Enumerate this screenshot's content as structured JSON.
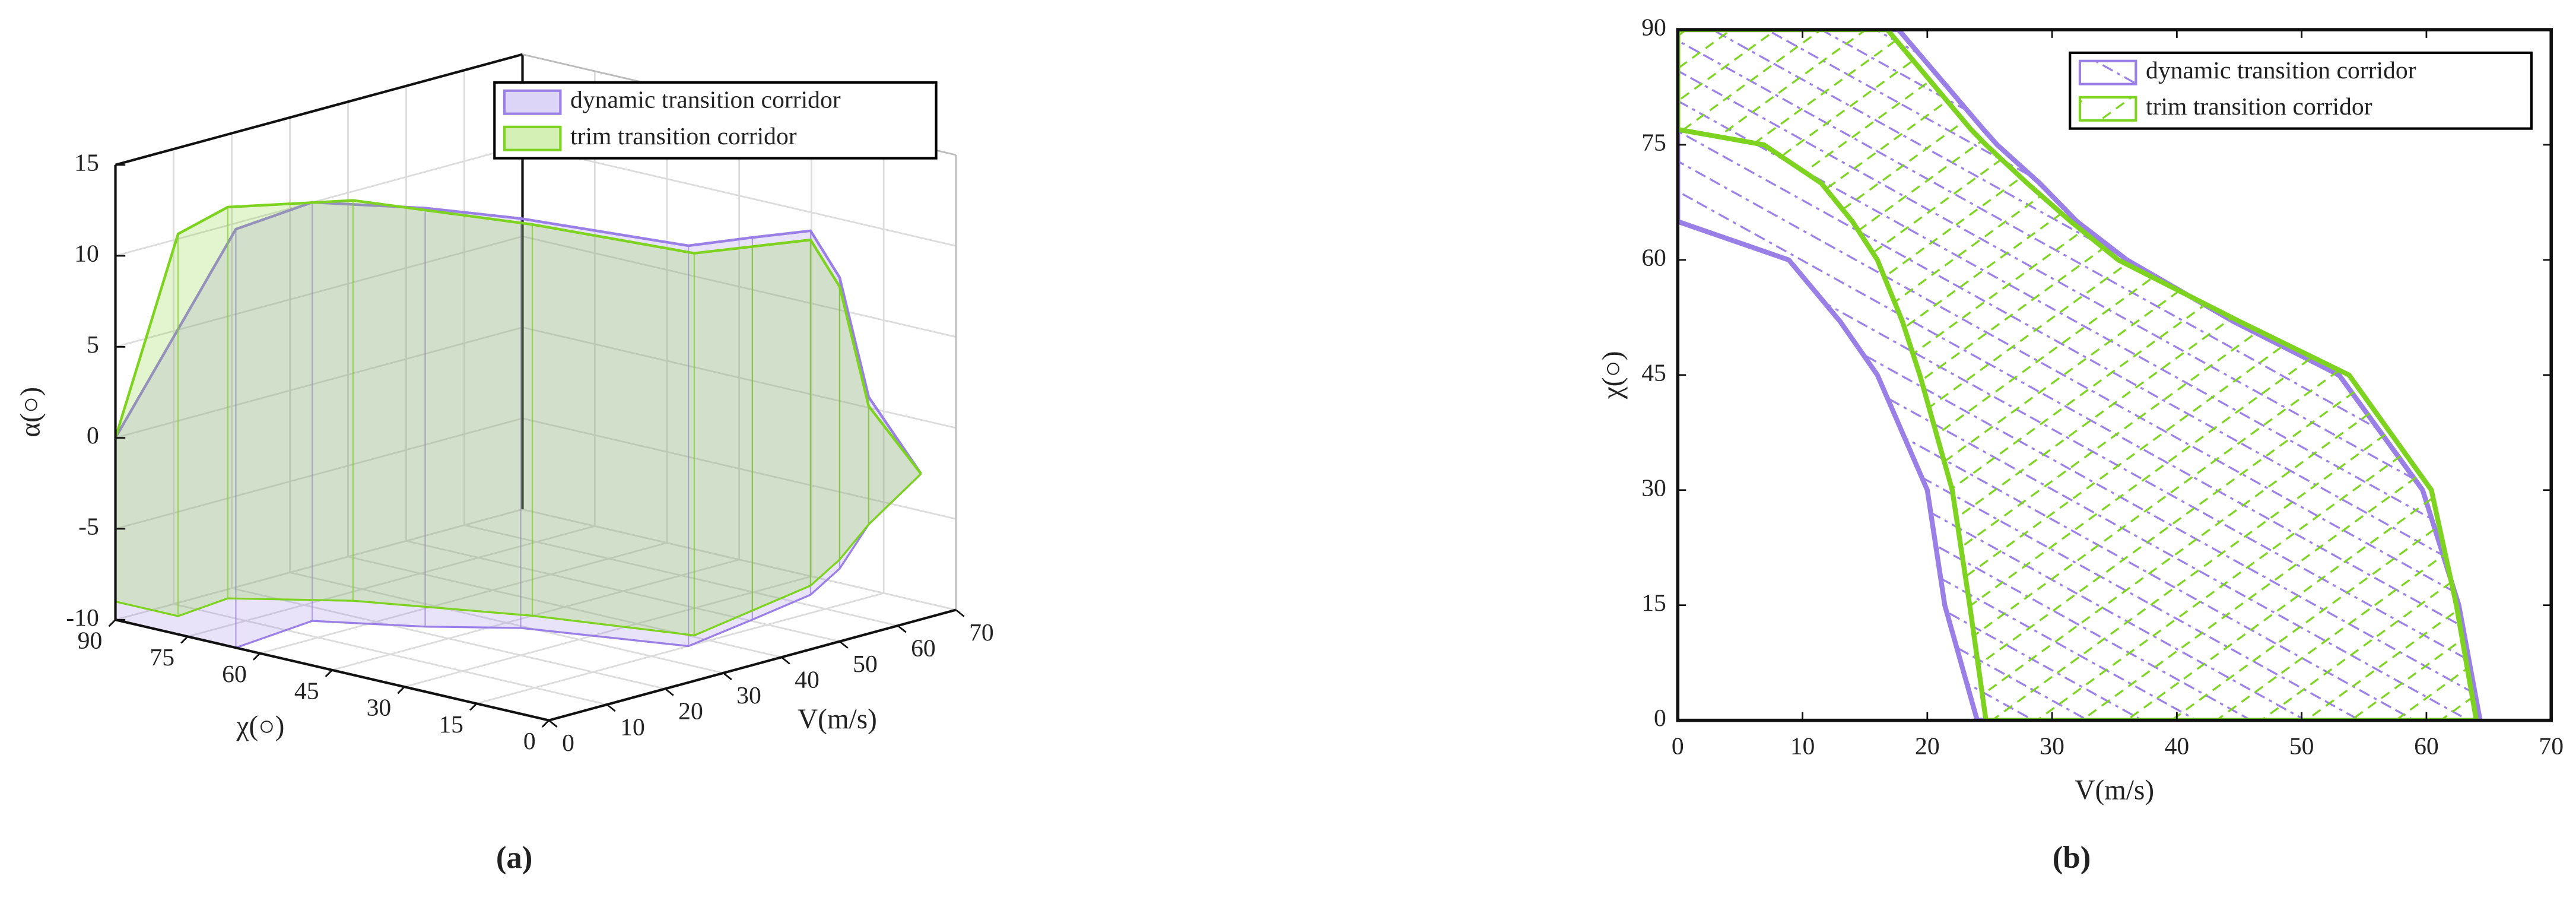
{
  "chart_data": [
    {
      "type": "surface3d",
      "caption": "(a)",
      "xlabel": "V(m/s)",
      "ylabel": "χ(○)",
      "zlabel": "α(○)",
      "xlim": [
        0,
        70
      ],
      "xticks": [
        0,
        10,
        20,
        30,
        40,
        50,
        60,
        70
      ],
      "ylim": [
        0,
        90
      ],
      "yticks": [
        0,
        15,
        30,
        45,
        60,
        75,
        90
      ],
      "zlim": [
        -10,
        15
      ],
      "zticks": [
        -10,
        -5,
        0,
        5,
        10,
        15
      ],
      "grid": true,
      "legend": "upper right",
      "series": [
        {
          "name": "dynamic transition corridor",
          "color": "#9a80e6",
          "v": [
            0,
            0,
            9,
            16,
            20,
            24,
            35,
            45,
            50,
            55,
            64
          ],
          "chi": [
            90,
            65,
            60,
            45,
            30,
            0,
            0,
            0,
            0,
            0,
            0
          ],
          "alpha_max": [
            0,
            13,
            14,
            14,
            14,
            14,
            13.5,
            13,
            10,
            3,
            -2
          ],
          "alpha_min": [
            -10,
            -10,
            -9,
            -9,
            -8.5,
            -8,
            -7.5,
            -7,
            -6,
            -4,
            -2
          ]
        },
        {
          "name": "trim transition corridor",
          "color": "#7ed321",
          "v": [
            0,
            0,
            6.9,
            16,
            22,
            25,
            35,
            45,
            50,
            55,
            64
          ],
          "chi": [
            90,
            77,
            75,
            60,
            30,
            0,
            0,
            0,
            0,
            0,
            0
          ],
          "alpha_max": [
            0,
            12,
            13,
            13.5,
            13.5,
            13.5,
            13,
            12.5,
            9.5,
            2.5,
            -2
          ],
          "alpha_min": [
            -9,
            -9,
            -8.5,
            -8.5,
            -8,
            -7.5,
            -7,
            -6.5,
            -5.5,
            -4,
            -2
          ]
        }
      ]
    },
    {
      "type": "corridor",
      "caption": "(b)",
      "xlabel": "V(m/s)",
      "ylabel": "χ(○)",
      "xlim": [
        0,
        70
      ],
      "xticks": [
        0,
        10,
        20,
        30,
        40,
        50,
        60,
        70
      ],
      "ylim": [
        0,
        90
      ],
      "yticks": [
        0,
        15,
        30,
        45,
        60,
        75,
        90
      ],
      "legend": "upper right",
      "y": [
        0,
        15,
        30,
        45,
        52,
        60,
        65,
        70,
        75,
        77,
        90
      ],
      "series": [
        {
          "name": "dynamic transition corridor",
          "color": "#9a80e6",
          "hatch": "backslash",
          "v_min": [
            24,
            21.4,
            20,
            16,
            13,
            8.9,
            0,
            0,
            0,
            0,
            0
          ],
          "v_max": [
            64.3,
            62.6,
            59.7,
            53,
            44.5,
            36,
            32,
            29,
            25.6,
            24.5,
            17.7
          ]
        },
        {
          "name": "trim transition corridor",
          "color": "#7ed321",
          "hatch": "slash",
          "v_min": [
            24.7,
            23.4,
            22,
            19.4,
            18,
            16,
            14,
            11.5,
            6.9,
            0,
            0
          ],
          "v_max": [
            64,
            62.4,
            60.4,
            53.8,
            45,
            35.3,
            31.5,
            28,
            24.7,
            23.5,
            16.8
          ]
        }
      ]
    }
  ]
}
